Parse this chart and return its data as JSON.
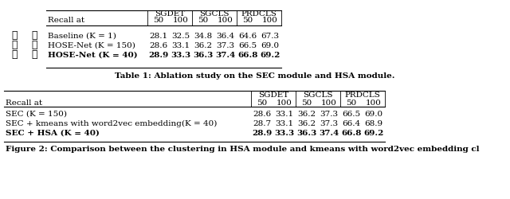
{
  "table1": {
    "header_cols": [
      "Recall at",
      "50",
      "100",
      "50",
      "100",
      "50",
      "100"
    ],
    "group_headers": [
      "SGDET",
      "SGCLS",
      "PRDCLS"
    ],
    "rows": [
      {
        "sec": "✗",
        "hsa": "✗",
        "label": "Baseline (K = 1)",
        "values": [
          "28.1",
          "32.5",
          "34.8",
          "36.4",
          "64.6",
          "67.3"
        ],
        "bold": false
      },
      {
        "sec": "✓",
        "hsa": "✗",
        "label": "HOSE-Net (K = 150)",
        "values": [
          "28.6",
          "33.1",
          "36.2",
          "37.3",
          "66.5",
          "69.0"
        ],
        "bold": false
      },
      {
        "sec": "✓",
        "hsa": "✓",
        "label": "HOSE-Net (K = 40)",
        "values": [
          "28.9",
          "33.3",
          "36.3",
          "37.4",
          "66.8",
          "69.2"
        ],
        "bold": true
      }
    ],
    "caption": "Table 1: Ablation study on the SEC module and HSA module."
  },
  "table2": {
    "group_headers": [
      "SGDET",
      "SGCLS",
      "PRDCLS"
    ],
    "subheaders": [
      "50",
      "100",
      "50",
      "100",
      "50",
      "100"
    ],
    "recall_label": "Recall at",
    "rows": [
      {
        "label": "SEC (K = 150)",
        "values": [
          "28.6",
          "33.1",
          "36.2",
          "37.3",
          "66.5",
          "69.0"
        ],
        "bold": false
      },
      {
        "label": "SEC + kmeans with word2vec embedding(K = 40)",
        "values": [
          "28.7",
          "33.1",
          "36.2",
          "37.3",
          "66.4",
          "68.9"
        ],
        "bold": false
      },
      {
        "label": "SEC + HSA (K = 40)",
        "values": [
          "28.9",
          "33.3",
          "36.3",
          "37.4",
          "66.8",
          "69.2"
        ],
        "bold": true
      }
    ],
    "caption": "Figure 2: Comparison between the clustering in HSA module and kmeans with word2vec embedding cl"
  },
  "bg": "#ffffff",
  "lw": 0.8,
  "fs": 7.5
}
